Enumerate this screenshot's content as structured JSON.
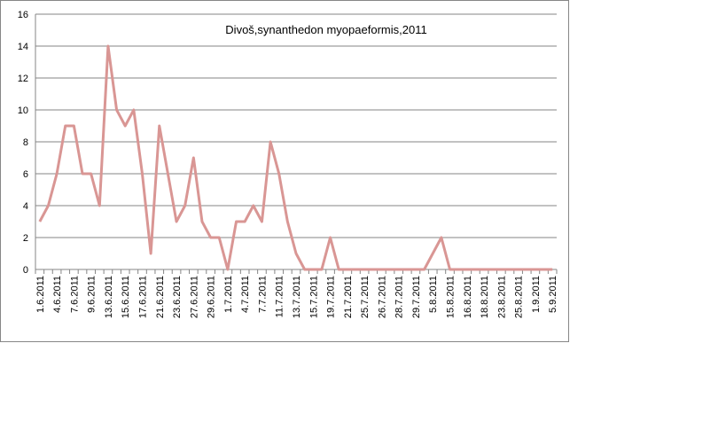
{
  "chart_data": {
    "type": "line",
    "title": "Divoš,synanthedon myopaeformis,2011",
    "categories": [
      "1.6.2011",
      null,
      "4.6.2011",
      null,
      "7.6.2011",
      null,
      "9.6.2011",
      null,
      "13.6.2011",
      null,
      "15.6.2011",
      null,
      "17.6.2011",
      null,
      "21.6.2011",
      null,
      "23.6.2011",
      null,
      "27.6.2011",
      null,
      "29.6.2011",
      null,
      "1.7.2011",
      null,
      "4.7.2011",
      null,
      "7.7.2011",
      null,
      "11.7.2011",
      null,
      "13.7.2011",
      null,
      "15.7.2011",
      null,
      "19.7.2011",
      null,
      "21.7.2011",
      null,
      "25.7.2011",
      null,
      "26.7.2011",
      null,
      "28.7.2011",
      null,
      "29.7.2011",
      null,
      "5.8.2011",
      null,
      "15.8.2011",
      null,
      "16.8.2011",
      null,
      "18.8.2011",
      null,
      "23.8.2011",
      null,
      "25.8.2011",
      null,
      "1.9.2011",
      null,
      "5.9.2011"
    ],
    "series": [
      {
        "color": "#d99694",
        "values": [
          3,
          4,
          6,
          9,
          9,
          6,
          6,
          4,
          14,
          10,
          9,
          10,
          6,
          1,
          9,
          6,
          3,
          4,
          7,
          3,
          2,
          2,
          0,
          3,
          3,
          4,
          3,
          8,
          6,
          3,
          1,
          0,
          0,
          0,
          2,
          0,
          0,
          0,
          0,
          0,
          0,
          0,
          0,
          0,
          0,
          0,
          1,
          2,
          0,
          0,
          0,
          0,
          0,
          0,
          0,
          0,
          0,
          0,
          0,
          0,
          0
        ]
      }
    ],
    "ylim": [
      0,
      16
    ],
    "yticks": [
      0,
      2,
      4,
      6,
      8,
      10,
      12,
      14,
      16
    ],
    "grid": true
  }
}
